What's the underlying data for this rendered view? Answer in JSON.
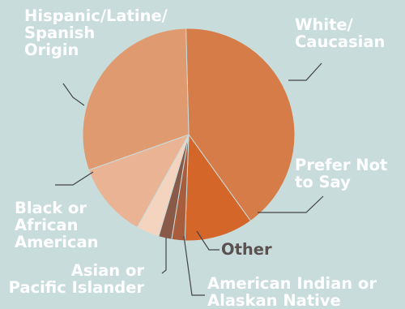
{
  "chart_data": {
    "type": "pie",
    "title": "",
    "slices": [
      {
        "label": "White/\nCaucasian",
        "value": 40.5,
        "color": "#d67c48",
        "text_color": "#ffffff"
      },
      {
        "label": "Prefer Not\nto Say",
        "value": 10.5,
        "color": "#d4662a",
        "text_color": "#ffffff"
      },
      {
        "label": "Other",
        "value": 2.0,
        "color": "#a85e3d",
        "text_color": "#5a5250"
      },
      {
        "label": "American Indian or\nAlaskan Native",
        "value": 2.0,
        "color": "#8a5a48",
        "text_color": "#ffffff"
      },
      {
        "label": "Asian or\nPacific Islander",
        "value": 3.5,
        "color": "#f4d3bf",
        "text_color": "#ffffff"
      },
      {
        "label": "Black or\nAfrican\nAmerican",
        "value": 11.5,
        "color": "#e9b394",
        "text_color": "#ffffff"
      },
      {
        "label": "Hispanic/Latine/\nSpanish\nOrigin",
        "value": 30.0,
        "color": "#df9a70",
        "text_color": "#ffffff"
      }
    ]
  }
}
